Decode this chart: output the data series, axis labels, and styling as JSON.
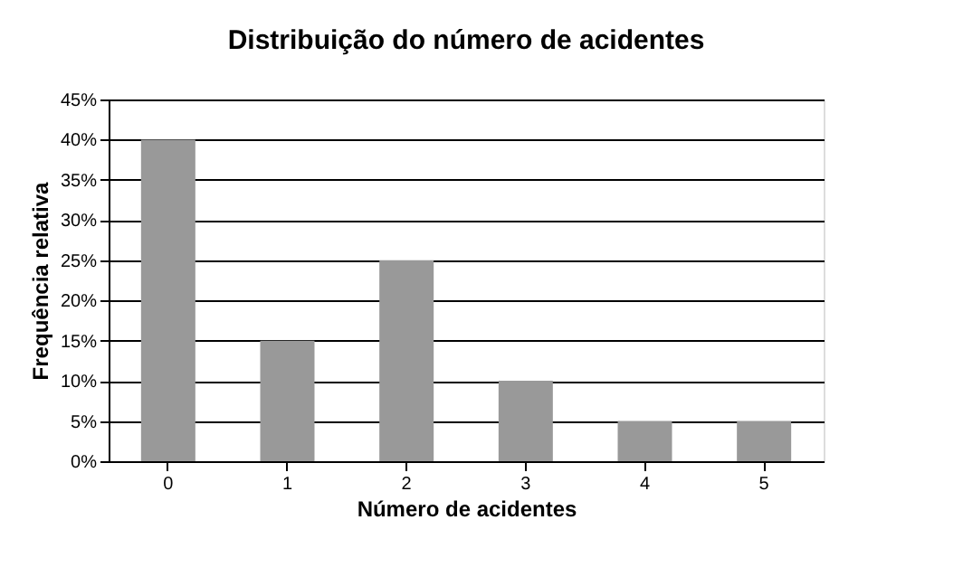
{
  "chart_data": {
    "type": "bar",
    "title": "Distribuição do número de acidentes",
    "xlabel": "Número de acidentes",
    "ylabel": "Frequência relativa",
    "categories": [
      "0",
      "1",
      "2",
      "3",
      "4",
      "5"
    ],
    "values": [
      40,
      15,
      25,
      10,
      5,
      5
    ],
    "color": "#999999",
    "ylim": [
      0,
      45
    ],
    "yticks": [
      {
        "value": 0,
        "label": "0%"
      },
      {
        "value": 5,
        "label": "5%"
      },
      {
        "value": 10,
        "label": "10%"
      },
      {
        "value": 15,
        "label": "15%"
      },
      {
        "value": 20,
        "label": "20%"
      },
      {
        "value": 25,
        "label": "25%"
      },
      {
        "value": 30,
        "label": "30%"
      },
      {
        "value": 35,
        "label": "35%"
      },
      {
        "value": 40,
        "label": "40%"
      },
      {
        "value": 45,
        "label": "45%"
      }
    ],
    "grid": "y"
  }
}
